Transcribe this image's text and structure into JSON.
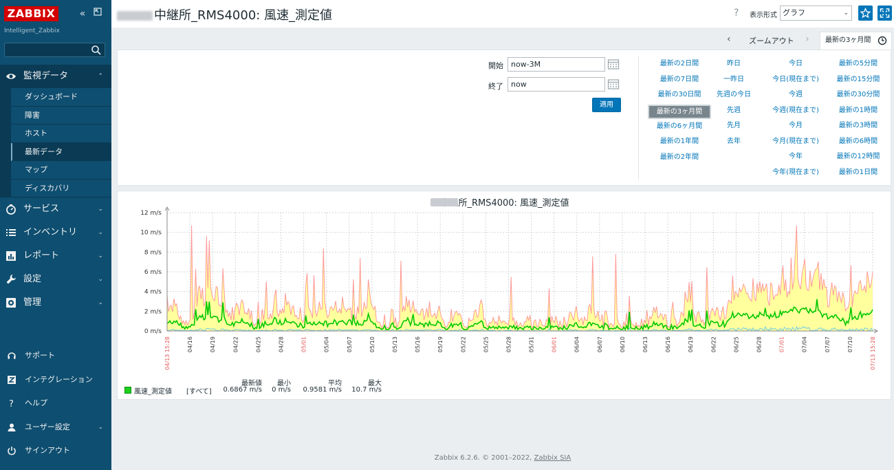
{
  "sidebar": {
    "logo": "ZABBIX",
    "server_name": "Intelligent_Zabbix",
    "search_placeholder": "",
    "main_nav": [
      {
        "label": "監視データ",
        "icon": "eye-icon",
        "expanded": true
      },
      {
        "label": "サービス",
        "icon": "clock-icon"
      },
      {
        "label": "インベントリ",
        "icon": "list-icon"
      },
      {
        "label": "レポート",
        "icon": "report-icon"
      },
      {
        "label": "設定",
        "icon": "wrench-icon"
      },
      {
        "label": "管理",
        "icon": "gear-icon"
      }
    ],
    "monitoring_sub": [
      "ダッシュボード",
      "障害",
      "ホスト",
      "最新データ",
      "マップ",
      "ディスカバリ"
    ],
    "current_sub": "最新データ",
    "bottom_nav": [
      {
        "label": "サポート",
        "icon": "headset-icon"
      },
      {
        "label": "インテグレーション",
        "icon": "integration-icon"
      },
      {
        "label": "ヘルプ",
        "icon": "help-icon"
      },
      {
        "label": "ユーザー設定",
        "icon": "user-icon"
      },
      {
        "label": "サインアウト",
        "icon": "power-icon"
      }
    ]
  },
  "header": {
    "title": "中継所_RMS4000: 風速_測定値",
    "help": "?",
    "view_label": "表示形式",
    "view_value": "グラフ"
  },
  "timebar": {
    "zoom_out": "ズームアウト",
    "active_tab": "最新の3ヶ月間"
  },
  "filter": {
    "from_label": "開始",
    "from_value": "now-3M",
    "to_label": "終了",
    "to_value": "now",
    "apply": "適用",
    "quick_columns": [
      [
        "最新の2日間",
        "最新の7日間",
        "最新の30日間",
        "最新の3ヶ月間",
        "最新の6ヶ月間",
        "最新の1年間",
        "最新の2年間"
      ],
      [
        "昨日",
        "一昨日",
        "先週の今日",
        "先週",
        "先月",
        "去年"
      ],
      [
        "今日",
        "今日(現在まで)",
        "今週",
        "今週(現在まで)",
        "今月",
        "今月(現在まで)",
        "今年",
        "今年(現在まで)"
      ],
      [
        "最新の5分間",
        "最新の15分間",
        "最新の30分間",
        "最新の1時間",
        "最新の3時間",
        "最新の6時間",
        "最新の12時間",
        "最新の1日間"
      ]
    ],
    "selected": "最新の3ヶ月間"
  },
  "chart_data": {
    "type": "area",
    "title": "中継所_RMS4000: 風速_測定値",
    "y_ticks": [
      "0 m/s",
      "2 m/s",
      "4 m/s",
      "6 m/s",
      "8 m/s",
      "10 m/s",
      "12 m/s"
    ],
    "ylim": [
      0,
      12
    ],
    "x_labels": [
      "04/13 15:28",
      "04/16",
      "04/19",
      "04/22",
      "04/25",
      "04/28",
      "05/01",
      "05/04",
      "05/07",
      "05/10",
      "05/13",
      "05/16",
      "05/19",
      "05/22",
      "05/25",
      "05/28",
      "05/31",
      "06/01",
      "06/04",
      "06/07",
      "06/10",
      "06/13",
      "06/16",
      "06/19",
      "06/22",
      "06/25",
      "06/28",
      "07/01",
      "07/04",
      "07/07",
      "07/10",
      "07/13 15:28"
    ],
    "red_x_labels": [
      "04/13 15:28",
      "05/01",
      "06/01",
      "07/01",
      "07/13 15:28"
    ],
    "grid": true,
    "series": [
      {
        "name": "風速_測定値",
        "color": "#00c800",
        "fill_max": "#ffff9e",
        "max_color": "#ff9999",
        "min_color": "#6ecbe6"
      }
    ],
    "legend": {
      "item": "風速_測定値",
      "function": "[すべて]",
      "columns": [
        {
          "header": "最新値",
          "value": "0.6867 m/s"
        },
        {
          "header": "最小",
          "value": "0 m/s"
        },
        {
          "header": "平均",
          "value": "0.9581 m/s"
        },
        {
          "header": "最大",
          "value": "10.7 m/s"
        }
      ]
    }
  },
  "footer": {
    "text": "Zabbix 6.2.6. © 2001–2022, ",
    "company": "Zabbix SIA"
  }
}
